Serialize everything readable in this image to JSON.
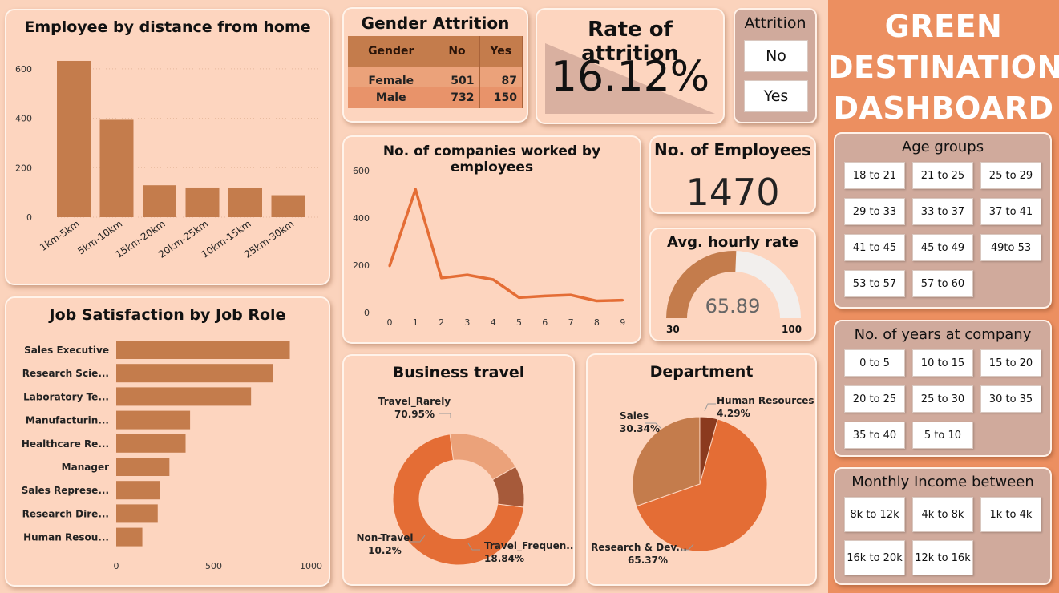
{
  "dashboard_title": [
    "GREEN",
    "DESTINATION",
    "DASHBOARD"
  ],
  "colors": {
    "primary": "#c47c4c",
    "accent": "#e46d35",
    "light": "#eba27a",
    "dark": "#8b3a1e",
    "background": "#fbd3bc",
    "side": "#ec8f60"
  },
  "distance": {
    "title": "Employee by distance from home"
  },
  "gender": {
    "title": "Gender Attrition",
    "headers": [
      "Gender",
      "No",
      "Yes"
    ],
    "rows": [
      {
        "label": "Female",
        "no": "501",
        "yes": "87"
      },
      {
        "label": "Male",
        "no": "732",
        "yes": "150"
      }
    ]
  },
  "rate": {
    "title": "Rate of attrition",
    "value": "16.12%"
  },
  "attrition_slicer": {
    "title": "Attrition",
    "options": [
      "No",
      "Yes"
    ]
  },
  "companies": {
    "title": "No. of companies worked by employees"
  },
  "employees": {
    "title": "No. of Employees",
    "value": "1470"
  },
  "hourly": {
    "title": "Avg. hourly rate",
    "value": "65.89",
    "min": "30",
    "max": "100"
  },
  "jobsat": {
    "title": "Job Satisfaction by Job Role"
  },
  "travel": {
    "title": "Business travel"
  },
  "department": {
    "title": "Department"
  },
  "age_slicer": {
    "title": "Age groups",
    "options": [
      "18 to 21",
      "21 to 25",
      "25 to 29",
      "29 to 33",
      "33 to 37",
      "37 to 41",
      "41 to 45",
      "45 to 49",
      "49to 53",
      "53 to 57",
      "57 to 60"
    ]
  },
  "years_slicer": {
    "title": "No. of years at company",
    "options": [
      "0 to 5",
      "10 to 15",
      "15 to 20",
      "20 to 25",
      "25 to 30",
      "30 to 35",
      "35 to 40",
      "5 to 10"
    ]
  },
  "income_slicer": {
    "title": "Monthly Income between",
    "options": [
      "8k to 12k",
      "4k to 8k",
      "1k to 4k",
      "16k to 20k",
      "12k to 16k"
    ]
  },
  "chart_data": [
    {
      "type": "bar",
      "title": "Employee by distance from home",
      "categories": [
        "1km-5km",
        "5km-10km",
        "15km-20km",
        "20km-25km",
        "10km-15km",
        "25km-30km"
      ],
      "values": [
        632,
        394,
        129,
        120,
        118,
        89
      ],
      "ylim": [
        0,
        700
      ],
      "yticks": [
        0,
        200,
        400,
        600
      ]
    },
    {
      "type": "line",
      "title": "No. of companies worked by employees",
      "x": [
        0,
        1,
        2,
        3,
        4,
        5,
        6,
        7,
        8,
        9
      ],
      "values": [
        197,
        521,
        146,
        159,
        139,
        63,
        70,
        74,
        49,
        52
      ],
      "ylim": [
        0,
        600
      ],
      "yticks": [
        0,
        200,
        400,
        600
      ]
    },
    {
      "type": "bar",
      "title": "Job Satisfaction by Job Role",
      "orientation": "horizontal",
      "categories": [
        "Sales Executive",
        "Research Scie...",
        "Laboratory Te...",
        "Manufacturin...",
        "Healthcare Re...",
        "Manager",
        "Sales Represe...",
        "Research Dire...",
        "Human Resou..."
      ],
      "values": [
        891,
        803,
        692,
        379,
        356,
        273,
        224,
        213,
        134
      ],
      "xlim": [
        0,
        1050
      ],
      "xticks": [
        0,
        500,
        1000
      ]
    },
    {
      "type": "pie",
      "title": "Business travel",
      "donut": true,
      "slices": [
        {
          "label": "Travel_Rarely",
          "value": 70.95,
          "pct": "70.95%"
        },
        {
          "label": "Travel_Frequen...",
          "value": 18.84,
          "pct": "18.84%"
        },
        {
          "label": "Non-Travel",
          "value": 10.2,
          "pct": "10.2%"
        }
      ]
    },
    {
      "type": "pie",
      "title": "Department",
      "slices": [
        {
          "label": "Research & Dev...",
          "value": 65.37,
          "pct": "65.37%"
        },
        {
          "label": "Sales",
          "value": 30.34,
          "pct": "30.34%"
        },
        {
          "label": "Human Resources",
          "value": 4.29,
          "pct": "4.29%"
        }
      ]
    },
    {
      "type": "gauge",
      "title": "Avg. hourly rate",
      "value": 65.89,
      "min": 30,
      "max": 100
    }
  ]
}
